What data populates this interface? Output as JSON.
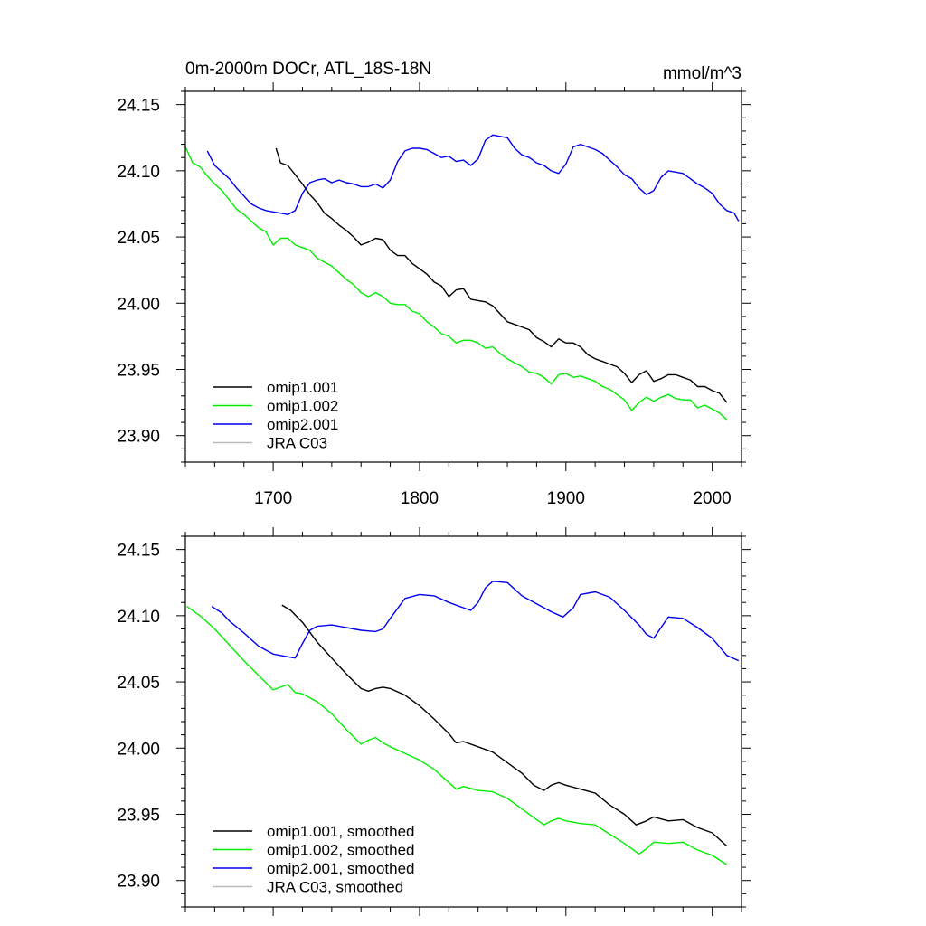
{
  "chart_data": [
    {
      "type": "line",
      "title_left": "0m-2000m DOCr, ATL_18S-18N",
      "title_right": "mmol/m^3",
      "xlim": [
        1640,
        2020
      ],
      "ylim": [
        23.88,
        24.16
      ],
      "x_ticks": [
        1700,
        1800,
        1900,
        2000
      ],
      "x_tick_labels": [
        "1700",
        "1800",
        "1900",
        "2000"
      ],
      "y_ticks": [
        23.9,
        23.95,
        24.0,
        24.05,
        24.1,
        24.15
      ],
      "y_tick_labels": [
        "23.90",
        "23.95",
        "24.00",
        "24.05",
        "24.10",
        "24.15"
      ],
      "legend_position": "bottom-left",
      "series": [
        {
          "name": "omip1.001",
          "color": "#000000",
          "x": [
            1702,
            1705,
            1710,
            1715,
            1720,
            1725,
            1730,
            1735,
            1740,
            1745,
            1750,
            1755,
            1760,
            1765,
            1770,
            1775,
            1780,
            1785,
            1790,
            1795,
            1800,
            1805,
            1810,
            1815,
            1820,
            1825,
            1830,
            1835,
            1840,
            1845,
            1850,
            1855,
            1860,
            1865,
            1870,
            1875,
            1880,
            1885,
            1890,
            1895,
            1900,
            1905,
            1910,
            1915,
            1920,
            1925,
            1930,
            1935,
            1940,
            1945,
            1950,
            1955,
            1960,
            1965,
            1970,
            1975,
            1980,
            1985,
            1990,
            1995,
            2000,
            2005,
            2010
          ],
          "y": [
            24.117,
            24.106,
            24.104,
            24.097,
            24.09,
            24.082,
            24.076,
            24.068,
            24.064,
            24.059,
            24.055,
            24.05,
            24.044,
            24.046,
            24.049,
            24.048,
            24.04,
            24.036,
            24.036,
            24.03,
            24.026,
            24.022,
            24.016,
            24.013,
            24.005,
            24.01,
            24.011,
            24.003,
            24.002,
            24.001,
            23.998,
            23.992,
            23.986,
            23.984,
            23.982,
            23.98,
            23.974,
            23.971,
            23.967,
            23.973,
            23.97,
            23.97,
            23.967,
            23.961,
            23.958,
            23.956,
            23.954,
            23.952,
            23.947,
            23.94,
            23.946,
            23.949,
            23.941,
            23.943,
            23.946,
            23.946,
            23.944,
            23.942,
            23.937,
            23.937,
            23.934,
            23.932,
            23.925
          ]
        },
        {
          "name": "omip1.002",
          "color": "#00ee00",
          "x": [
            1640,
            1645,
            1650,
            1655,
            1660,
            1665,
            1670,
            1675,
            1680,
            1685,
            1690,
            1695,
            1700,
            1705,
            1710,
            1715,
            1720,
            1725,
            1730,
            1735,
            1740,
            1745,
            1750,
            1755,
            1760,
            1765,
            1770,
            1775,
            1780,
            1785,
            1790,
            1795,
            1800,
            1805,
            1810,
            1815,
            1820,
            1825,
            1830,
            1835,
            1840,
            1845,
            1850,
            1855,
            1860,
            1865,
            1870,
            1875,
            1880,
            1885,
            1890,
            1895,
            1900,
            1905,
            1910,
            1915,
            1920,
            1925,
            1930,
            1935,
            1940,
            1945,
            1950,
            1955,
            1960,
            1965,
            1970,
            1975,
            1980,
            1985,
            1990,
            1995,
            2000,
            2005,
            2010
          ],
          "y": [
            24.118,
            24.106,
            24.103,
            24.096,
            24.09,
            24.085,
            24.078,
            24.071,
            24.067,
            24.062,
            24.057,
            24.054,
            24.044,
            24.049,
            24.049,
            24.044,
            24.042,
            24.04,
            24.034,
            24.031,
            24.028,
            24.023,
            24.018,
            24.014,
            24.008,
            24.005,
            24.008,
            24.005,
            24.0,
            23.999,
            23.999,
            23.994,
            23.992,
            23.986,
            23.982,
            23.977,
            23.975,
            23.97,
            23.972,
            23.972,
            23.97,
            23.966,
            23.967,
            23.962,
            23.958,
            23.955,
            23.952,
            23.948,
            23.947,
            23.944,
            23.939,
            23.946,
            23.947,
            23.944,
            23.945,
            23.943,
            23.941,
            23.937,
            23.935,
            23.931,
            23.927,
            23.919,
            23.925,
            23.929,
            23.926,
            23.929,
            23.931,
            23.928,
            23.927,
            23.927,
            23.921,
            23.923,
            23.92,
            23.917,
            23.912
          ]
        },
        {
          "name": "omip2.001",
          "color": "#0000ee",
          "x": [
            1655,
            1660,
            1665,
            1670,
            1675,
            1680,
            1685,
            1690,
            1695,
            1700,
            1705,
            1710,
            1715,
            1720,
            1725,
            1730,
            1735,
            1740,
            1745,
            1750,
            1755,
            1760,
            1765,
            1770,
            1775,
            1780,
            1785,
            1790,
            1795,
            1800,
            1805,
            1810,
            1815,
            1820,
            1825,
            1830,
            1835,
            1840,
            1845,
            1850,
            1855,
            1860,
            1865,
            1870,
            1875,
            1880,
            1885,
            1890,
            1895,
            1900,
            1905,
            1910,
            1915,
            1920,
            1925,
            1930,
            1935,
            1940,
            1945,
            1950,
            1955,
            1960,
            1965,
            1970,
            1975,
            1980,
            1985,
            1990,
            1995,
            2000,
            2005,
            2010,
            2015,
            2018
          ],
          "y": [
            24.115,
            24.104,
            24.099,
            24.094,
            24.087,
            24.081,
            24.075,
            24.072,
            24.07,
            24.069,
            24.068,
            24.067,
            24.07,
            24.083,
            24.091,
            24.093,
            24.094,
            24.091,
            24.093,
            24.091,
            24.09,
            24.088,
            24.088,
            24.09,
            24.087,
            24.093,
            24.107,
            24.115,
            24.117,
            24.117,
            24.116,
            24.113,
            24.11,
            24.111,
            24.107,
            24.108,
            24.104,
            24.109,
            24.123,
            24.127,
            24.126,
            24.125,
            24.117,
            24.112,
            24.11,
            24.106,
            24.104,
            24.1,
            24.098,
            24.105,
            24.118,
            24.12,
            24.118,
            24.116,
            24.113,
            24.108,
            24.103,
            24.097,
            24.094,
            24.087,
            24.082,
            24.085,
            24.095,
            24.1,
            24.099,
            24.098,
            24.094,
            24.09,
            24.087,
            24.083,
            24.075,
            24.07,
            24.068,
            24.062
          ]
        },
        {
          "name": "JRA C03",
          "color": "#bbbbbb",
          "x": [],
          "y": []
        }
      ]
    },
    {
      "type": "line",
      "xlim": [
        1640,
        2020
      ],
      "ylim": [
        23.88,
        24.16
      ],
      "y_ticks": [
        23.9,
        23.95,
        24.0,
        24.05,
        24.1,
        24.15
      ],
      "y_tick_labels": [
        "23.90",
        "23.95",
        "24.00",
        "24.05",
        "24.10",
        "24.15"
      ],
      "legend_position": "bottom-left",
      "series": [
        {
          "name": "omip1.001, smoothed",
          "color": "#000000",
          "x": [
            1706,
            1712,
            1720,
            1730,
            1740,
            1750,
            1760,
            1765,
            1770,
            1775,
            1780,
            1790,
            1800,
            1810,
            1820,
            1825,
            1830,
            1840,
            1850,
            1860,
            1870,
            1878,
            1885,
            1890,
            1895,
            1900,
            1910,
            1920,
            1930,
            1940,
            1948,
            1955,
            1960,
            1970,
            1980,
            1990,
            2000,
            2010
          ],
          "y": [
            24.108,
            24.104,
            24.095,
            24.08,
            24.068,
            24.056,
            24.045,
            24.043,
            24.045,
            24.046,
            24.045,
            24.04,
            24.032,
            24.022,
            24.011,
            24.004,
            24.005,
            24.001,
            23.997,
            23.989,
            23.981,
            23.972,
            23.968,
            23.972,
            23.974,
            23.972,
            23.969,
            23.966,
            23.957,
            23.95,
            23.942,
            23.945,
            23.948,
            23.945,
            23.946,
            23.94,
            23.936,
            23.926
          ]
        },
        {
          "name": "omip1.002, smoothed",
          "color": "#00ee00",
          "x": [
            1641,
            1650,
            1660,
            1670,
            1680,
            1690,
            1700,
            1705,
            1710,
            1715,
            1720,
            1730,
            1740,
            1750,
            1760,
            1765,
            1770,
            1775,
            1780,
            1790,
            1800,
            1810,
            1820,
            1825,
            1830,
            1840,
            1850,
            1860,
            1870,
            1880,
            1885,
            1890,
            1895,
            1900,
            1910,
            1920,
            1930,
            1940,
            1950,
            1955,
            1960,
            1970,
            1980,
            1990,
            2000,
            2010
          ],
          "y": [
            24.107,
            24.1,
            24.09,
            24.078,
            24.066,
            24.055,
            24.044,
            24.046,
            24.048,
            24.042,
            24.041,
            24.035,
            24.026,
            24.014,
            24.003,
            24.006,
            24.008,
            24.004,
            24.001,
            23.996,
            23.991,
            23.984,
            23.974,
            23.969,
            23.971,
            23.968,
            23.967,
            23.962,
            23.954,
            23.946,
            23.942,
            23.945,
            23.947,
            23.945,
            23.943,
            23.942,
            23.935,
            23.928,
            23.92,
            23.924,
            23.929,
            23.928,
            23.929,
            23.923,
            23.919,
            23.912
          ]
        },
        {
          "name": "omip2.001, smoothed",
          "color": "#0000ee",
          "x": [
            1658,
            1665,
            1670,
            1680,
            1690,
            1700,
            1710,
            1715,
            1720,
            1725,
            1730,
            1740,
            1750,
            1760,
            1770,
            1775,
            1780,
            1790,
            1800,
            1810,
            1820,
            1830,
            1835,
            1840,
            1845,
            1850,
            1860,
            1870,
            1880,
            1890,
            1898,
            1905,
            1910,
            1920,
            1930,
            1940,
            1950,
            1955,
            1960,
            1965,
            1970,
            1980,
            1990,
            2000,
            2010,
            2018
          ],
          "y": [
            24.107,
            24.102,
            24.096,
            24.087,
            24.077,
            24.071,
            24.069,
            24.068,
            24.079,
            24.089,
            24.092,
            24.093,
            24.091,
            24.089,
            24.088,
            24.09,
            24.098,
            24.113,
            24.116,
            24.115,
            24.11,
            24.106,
            24.104,
            24.11,
            24.121,
            24.126,
            24.125,
            24.115,
            24.109,
            24.103,
            24.099,
            24.106,
            24.116,
            24.118,
            24.114,
            24.104,
            24.093,
            24.086,
            24.083,
            24.091,
            24.099,
            24.098,
            24.091,
            24.083,
            24.07,
            24.066
          ]
        },
        {
          "name": "JRA C03, smoothed",
          "color": "#bbbbbb",
          "x": [],
          "y": []
        }
      ]
    }
  ]
}
